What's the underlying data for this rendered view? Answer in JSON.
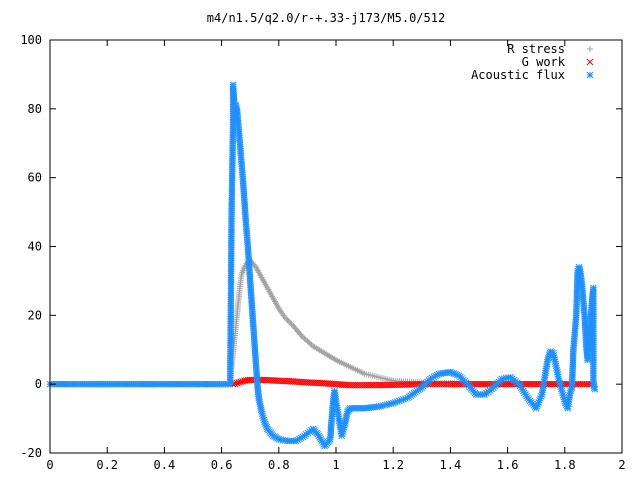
{
  "chart_data": {
    "type": "scatter",
    "title": "m4/n1.5/q2.0/r-+.33-j173/M5.0/512",
    "xlabel": "",
    "ylabel": "",
    "xlim": [
      0,
      2
    ],
    "ylim": [
      -20,
      100
    ],
    "x_ticks": [
      "0",
      "0.2",
      "0.4",
      "0.6",
      "0.8",
      "1",
      "1.2",
      "1.4",
      "1.6",
      "1.8",
      "2"
    ],
    "y_ticks": [
      "-20",
      "0",
      "20",
      "40",
      "60",
      "80",
      "100"
    ],
    "grid": false,
    "legend_position": "top-right",
    "series": [
      {
        "name": "R stress",
        "marker": "plus",
        "color": "#a0a0a0",
        "points": [
          [
            0.0,
            0
          ],
          [
            0.1,
            0
          ],
          [
            0.2,
            0
          ],
          [
            0.3,
            0
          ],
          [
            0.4,
            0
          ],
          [
            0.5,
            0
          ],
          [
            0.6,
            0
          ],
          [
            0.63,
            0
          ],
          [
            0.635,
            5
          ],
          [
            0.64,
            9
          ],
          [
            0.645,
            13
          ],
          [
            0.65,
            17
          ],
          [
            0.655,
            21
          ],
          [
            0.66,
            25
          ],
          [
            0.665,
            29
          ],
          [
            0.67,
            32
          ],
          [
            0.68,
            34
          ],
          [
            0.69,
            35.5
          ],
          [
            0.7,
            36
          ],
          [
            0.72,
            34
          ],
          [
            0.74,
            31
          ],
          [
            0.76,
            28
          ],
          [
            0.78,
            25
          ],
          [
            0.8,
            22
          ],
          [
            0.82,
            19.5
          ],
          [
            0.85,
            17
          ],
          [
            0.88,
            14
          ],
          [
            0.92,
            11
          ],
          [
            0.96,
            9
          ],
          [
            1.0,
            7
          ],
          [
            1.05,
            5
          ],
          [
            1.1,
            3
          ],
          [
            1.15,
            2
          ],
          [
            1.2,
            1
          ],
          [
            1.3,
            0.5
          ],
          [
            1.4,
            0.3
          ],
          [
            1.5,
            0
          ],
          [
            1.6,
            0
          ],
          [
            1.7,
            0
          ],
          [
            1.8,
            0
          ],
          [
            1.9,
            0
          ]
        ]
      },
      {
        "name": "G work",
        "marker": "cross",
        "color": "#ff0000",
        "points": [
          [
            0.64,
            0
          ],
          [
            0.66,
            0.5
          ],
          [
            0.68,
            1
          ],
          [
            0.7,
            1.2
          ],
          [
            0.75,
            1.2
          ],
          [
            0.8,
            1
          ],
          [
            0.85,
            0.8
          ],
          [
            0.9,
            0.5
          ],
          [
            0.95,
            0.3
          ],
          [
            1.0,
            0
          ],
          [
            1.05,
            -0.3
          ],
          [
            1.1,
            -0.3
          ],
          [
            1.2,
            -0.2
          ],
          [
            1.3,
            0
          ],
          [
            1.4,
            0
          ],
          [
            1.5,
            0
          ],
          [
            1.6,
            0
          ],
          [
            1.7,
            0
          ],
          [
            1.8,
            0
          ],
          [
            1.9,
            0
          ]
        ]
      },
      {
        "name": "Acoustic flux",
        "marker": "star",
        "color": "#1e90ff",
        "points": [
          [
            0.0,
            0
          ],
          [
            0.05,
            0
          ],
          [
            0.1,
            0
          ],
          [
            0.15,
            0
          ],
          [
            0.2,
            0
          ],
          [
            0.25,
            0
          ],
          [
            0.3,
            0
          ],
          [
            0.35,
            0
          ],
          [
            0.4,
            0
          ],
          [
            0.45,
            0
          ],
          [
            0.5,
            0
          ],
          [
            0.55,
            0
          ],
          [
            0.6,
            0
          ],
          [
            0.63,
            0
          ],
          [
            0.635,
            50.5
          ],
          [
            0.64,
            75.5
          ],
          [
            0.64,
            87
          ],
          [
            0.645,
            81
          ],
          [
            0.65,
            81
          ],
          [
            0.655,
            79
          ],
          [
            0.66,
            74
          ],
          [
            0.665,
            69
          ],
          [
            0.67,
            64
          ],
          [
            0.675,
            59
          ],
          [
            0.68,
            53
          ],
          [
            0.685,
            47
          ],
          [
            0.69,
            42
          ],
          [
            0.695,
            36
          ],
          [
            0.7,
            30
          ],
          [
            0.705,
            24
          ],
          [
            0.71,
            18
          ],
          [
            0.715,
            12
          ],
          [
            0.72,
            6
          ],
          [
            0.725,
            0
          ],
          [
            0.73,
            -4
          ],
          [
            0.74,
            -8
          ],
          [
            0.75,
            -11
          ],
          [
            0.76,
            -13
          ],
          [
            0.78,
            -15
          ],
          [
            0.8,
            -16
          ],
          [
            0.83,
            -16.5
          ],
          [
            0.86,
            -16.5
          ],
          [
            0.89,
            -15
          ],
          [
            0.92,
            -13
          ],
          [
            0.94,
            -15
          ],
          [
            0.96,
            -18
          ],
          [
            0.98,
            -16
          ],
          [
            0.985,
            -10
          ],
          [
            0.99,
            -5
          ],
          [
            0.995,
            -2
          ],
          [
            1.0,
            -5
          ],
          [
            1.01,
            -10
          ],
          [
            1.02,
            -15
          ],
          [
            1.03,
            -12
          ],
          [
            1.04,
            -8
          ],
          [
            1.05,
            -7
          ],
          [
            1.1,
            -7
          ],
          [
            1.15,
            -6.5
          ],
          [
            1.2,
            -5.5
          ],
          [
            1.25,
            -4
          ],
          [
            1.3,
            -1
          ],
          [
            1.33,
            1.5
          ],
          [
            1.36,
            3
          ],
          [
            1.4,
            3.5
          ],
          [
            1.43,
            2.5
          ],
          [
            1.46,
            0
          ],
          [
            1.49,
            -3
          ],
          [
            1.52,
            -3
          ],
          [
            1.55,
            -1
          ],
          [
            1.58,
            1.5
          ],
          [
            1.61,
            2
          ],
          [
            1.64,
            0
          ],
          [
            1.67,
            -4
          ],
          [
            1.7,
            -7
          ],
          [
            1.72,
            -3
          ],
          [
            1.74,
            7
          ],
          [
            1.75,
            9.5
          ],
          [
            1.76,
            9
          ],
          [
            1.78,
            1
          ],
          [
            1.8,
            -5
          ],
          [
            1.81,
            -7
          ],
          [
            1.82,
            -2
          ],
          [
            1.825,
            -1
          ],
          [
            1.83,
            10
          ],
          [
            1.835,
            15
          ],
          [
            1.84,
            20
          ],
          [
            1.845,
            33
          ],
          [
            1.85,
            34
          ],
          [
            1.855,
            32
          ],
          [
            1.86,
            29
          ],
          [
            1.865,
            24
          ],
          [
            1.87,
            19
          ],
          [
            1.875,
            11
          ],
          [
            1.88,
            7
          ],
          [
            1.885,
            13
          ],
          [
            1.89,
            18
          ],
          [
            1.895,
            24
          ],
          [
            1.9,
            28
          ],
          [
            1.9,
            0
          ],
          [
            1.905,
            -1.5
          ]
        ]
      }
    ]
  }
}
